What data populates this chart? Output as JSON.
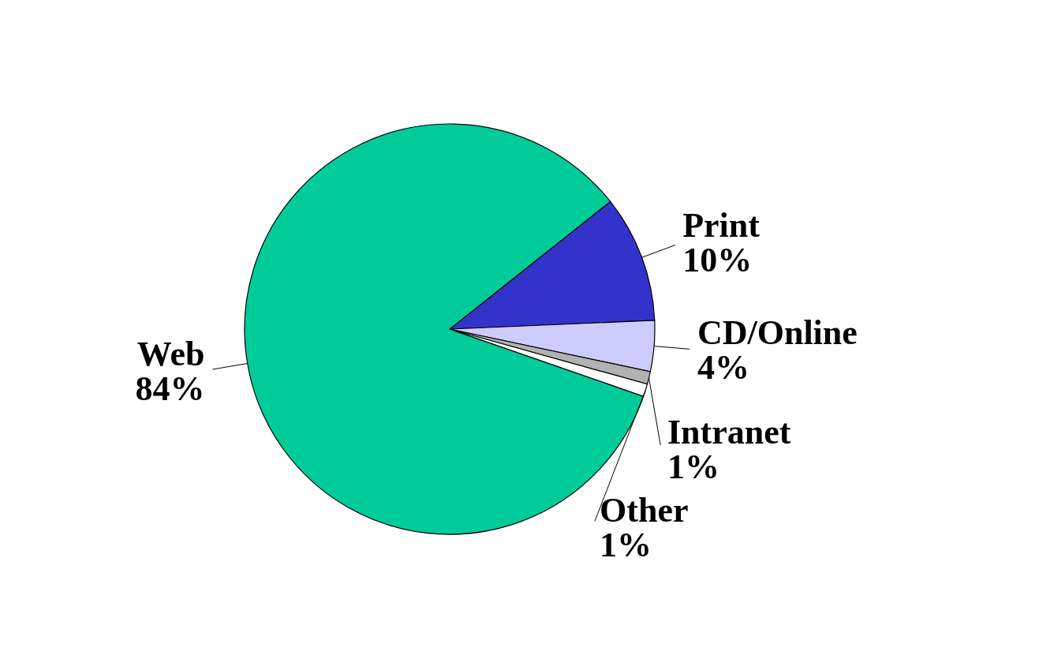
{
  "chart_data": {
    "type": "pie",
    "categories": [
      "Print",
      "CD/Online",
      "Intranet",
      "Other",
      "Web"
    ],
    "values": [
      10,
      4,
      1,
      1,
      84
    ],
    "value_labels": [
      "10%",
      "4%",
      "1%",
      "1%",
      "84%"
    ],
    "colors": [
      "#3333cc",
      "#ccccff",
      "#b2b2b2",
      "#ffffff",
      "#00cc99"
    ],
    "legend": false
  }
}
